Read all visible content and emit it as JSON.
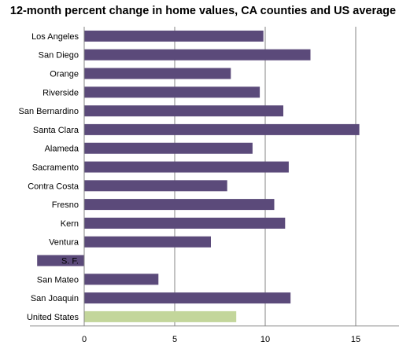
{
  "chart_data": {
    "type": "bar",
    "orientation": "horizontal",
    "title": "12-month percent change in home values, CA counties and US average",
    "xlabel": "",
    "ylabel": "",
    "xlim": [
      -3,
      17.5
    ],
    "xticks": [
      0,
      5,
      10,
      15
    ],
    "grid": true,
    "legend": "none",
    "categories": [
      "Los Angeles",
      "San Diego",
      "Orange",
      "Riverside",
      "San Bernardino",
      "Santa Clara",
      "Alameda",
      "Sacramento",
      "Contra Costa",
      "Fresno",
      "Kern",
      "Ventura",
      "S. F.",
      "San Mateo",
      "San Joaquin",
      "United States"
    ],
    "values": [
      9.9,
      12.5,
      8.1,
      9.7,
      11.0,
      15.2,
      9.3,
      11.3,
      7.9,
      10.5,
      11.1,
      7.0,
      -2.6,
      4.1,
      11.4,
      8.4
    ],
    "colors": {
      "county": "#5b4a7a",
      "us": "#c3d69b",
      "grid": "#868686",
      "axis": "#868686"
    }
  }
}
